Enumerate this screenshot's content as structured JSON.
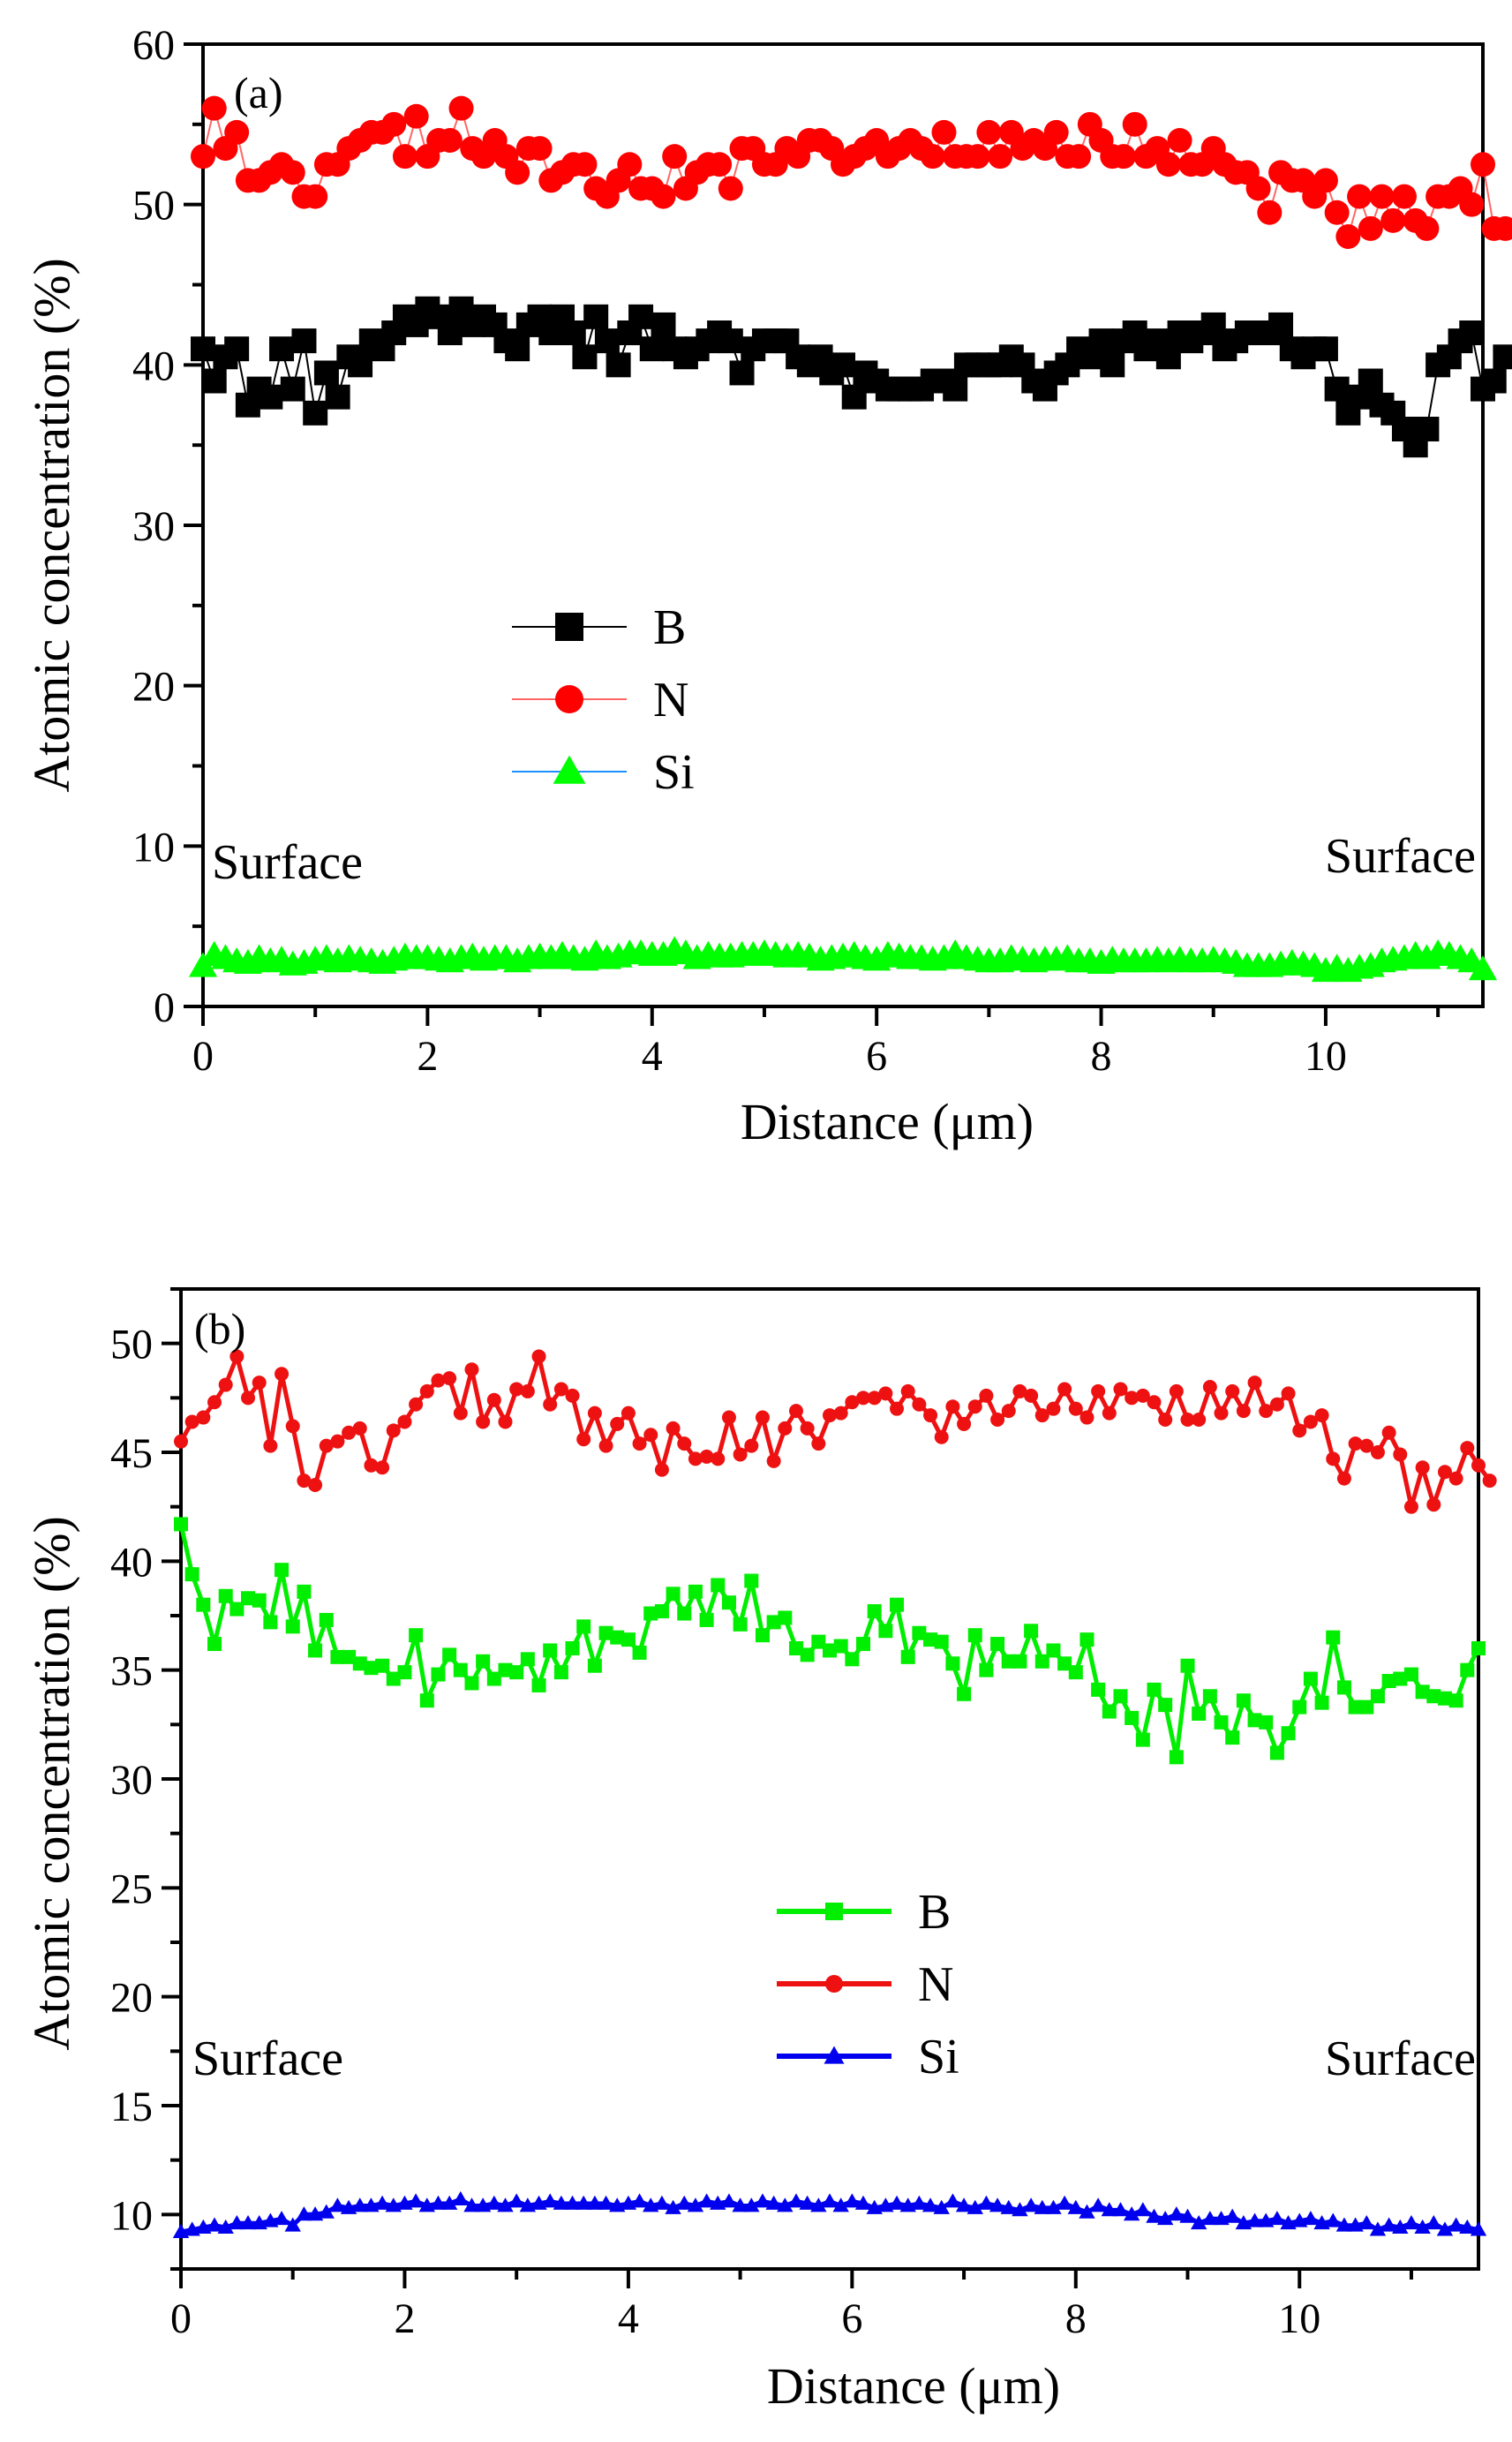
{
  "chart_data": [
    {
      "type": "line",
      "panel_label": "(a)",
      "xlabel": "Distance (μm)",
      "ylabel": "Atomic concentration (%)",
      "xlim": [
        0,
        11.4
      ],
      "ylim": [
        0,
        60
      ],
      "x_ticks": [
        0,
        2,
        4,
        6,
        8,
        10
      ],
      "x_tick_labels": [
        "0",
        "2",
        "4",
        "6",
        "8",
        "10"
      ],
      "y_ticks": [
        0,
        10,
        20,
        30,
        40,
        50,
        60
      ],
      "y_tick_labels": [
        "0",
        "10",
        "20",
        "30",
        "40",
        "50",
        "60"
      ],
      "legend_position": "center-left",
      "annotations": [
        {
          "text": "Surface",
          "position": "left"
        },
        {
          "text": "Surface",
          "position": "right"
        }
      ],
      "series": [
        {
          "name": "B",
          "marker": "square",
          "color": "#000000",
          "line_color": "#000000",
          "x_start": 0,
          "x_step": 0.1,
          "values": [
            41.0,
            39.0,
            40.5,
            41.0,
            37.5,
            38.5,
            38.0,
            41.0,
            38.5,
            41.5,
            37.0,
            39.5,
            38.0,
            40.5,
            40.0,
            41.5,
            41.0,
            42.0,
            43.0,
            42.5,
            43.5,
            43.0,
            42.0,
            43.5,
            42.5,
            43.0,
            42.5,
            41.5,
            41.0,
            42.5,
            43.0,
            42.0,
            43.0,
            42.0,
            40.5,
            43.0,
            41.5,
            40.0,
            42.0,
            43.0,
            41.0,
            42.5,
            41.0,
            40.5,
            41.0,
            41.5,
            42.0,
            41.5,
            39.5,
            41.0,
            41.5,
            41.5,
            41.5,
            40.5,
            40.0,
            40.5,
            39.5,
            40.0,
            38.0,
            39.5,
            39.0,
            38.5,
            38.5,
            38.5,
            38.5,
            39.0,
            39.0,
            38.5,
            40.0,
            40.0,
            40.0,
            40.0,
            40.5,
            40.0,
            39.0,
            38.5,
            39.5,
            40.0,
            41.0,
            40.5,
            41.5,
            40.0,
            41.5,
            42.0,
            41.0,
            41.5,
            40.5,
            42.0,
            41.5,
            42.0,
            42.5,
            41.0,
            41.5,
            42.0,
            42.0,
            42.0,
            42.5,
            41.0,
            40.5,
            41.0,
            41.0,
            38.5,
            37.0,
            38.0,
            39.0,
            37.5,
            37.0,
            36.0,
            35.0,
            36.0,
            40.0,
            40.5,
            41.5,
            42.0,
            38.5,
            39.0,
            40.5
          ]
        },
        {
          "name": "N",
          "marker": "circle",
          "color": "#ff0000",
          "line_color": "#ff6666",
          "x_start": 0,
          "x_step": 0.1,
          "values": [
            53.0,
            56.0,
            53.5,
            54.5,
            51.5,
            51.5,
            52.0,
            52.5,
            52.0,
            50.5,
            50.5,
            52.5,
            52.5,
            53.5,
            54.0,
            54.5,
            54.5,
            55.0,
            53.0,
            55.5,
            53.0,
            54.0,
            54.0,
            56.0,
            53.5,
            53.0,
            54.0,
            53.0,
            52.0,
            53.5,
            53.5,
            51.5,
            52.0,
            52.5,
            52.5,
            51.0,
            50.5,
            51.5,
            52.5,
            51.0,
            51.0,
            50.5,
            53.0,
            51.0,
            52.0,
            52.5,
            52.5,
            51.0,
            53.5,
            53.5,
            52.5,
            52.5,
            53.5,
            53.0,
            54.0,
            54.0,
            53.5,
            52.5,
            53.0,
            53.5,
            54.0,
            53.0,
            53.5,
            54.0,
            53.5,
            53.0,
            54.5,
            53.0,
            53.0,
            53.0,
            54.5,
            53.0,
            54.5,
            53.5,
            54.0,
            53.5,
            54.5,
            53.0,
            53.0,
            55.0,
            54.0,
            53.0,
            53.0,
            55.0,
            53.0,
            53.5,
            52.5,
            54.0,
            52.5,
            52.5,
            53.5,
            52.5,
            52.0,
            52.0,
            51.0,
            49.5,
            52.0,
            51.5,
            51.5,
            50.5,
            51.5,
            49.5,
            48.0,
            50.5,
            48.5,
            50.5,
            49.0,
            50.5,
            49.0,
            48.5,
            50.5,
            50.5,
            51.0,
            50.0,
            52.5,
            48.5,
            48.5
          ]
        },
        {
          "name": "Si",
          "marker": "triangle",
          "color": "#00ff00",
          "line_color": "#1e90ff",
          "x_start": 0,
          "x_step": 0.1,
          "values": [
            2.5,
            3.2,
            3.0,
            2.8,
            2.7,
            3.0,
            2.8,
            2.9,
            2.6,
            2.7,
            2.9,
            3.0,
            2.8,
            3.0,
            2.9,
            2.8,
            2.7,
            2.9,
            3.1,
            3.0,
            3.0,
            2.9,
            2.8,
            3.0,
            3.1,
            2.9,
            3.0,
            3.0,
            2.8,
            3.0,
            3.1,
            3.0,
            3.2,
            3.0,
            2.9,
            3.3,
            3.0,
            3.1,
            3.3,
            3.3,
            3.2,
            3.2,
            3.5,
            3.3,
            3.0,
            3.2,
            3.1,
            3.1,
            3.2,
            3.2,
            3.3,
            3.2,
            3.1,
            3.2,
            3.1,
            2.9,
            3.0,
            3.1,
            3.2,
            3.0,
            2.9,
            3.2,
            3.1,
            3.0,
            3.0,
            2.9,
            3.0,
            3.3,
            3.0,
            2.9,
            2.8,
            2.8,
            3.0,
            2.9,
            2.8,
            2.9,
            2.9,
            3.0,
            2.8,
            2.8,
            2.7,
            2.9,
            2.8,
            2.8,
            2.8,
            2.9,
            2.8,
            2.9,
            2.8,
            2.8,
            2.9,
            2.8,
            2.7,
            2.5,
            2.5,
            2.5,
            2.6,
            2.7,
            2.6,
            2.5,
            2.2,
            2.4,
            2.2,
            2.4,
            2.5,
            2.8,
            2.9,
            3.0,
            3.2,
            3.0,
            3.3,
            3.2,
            3.0,
            2.8,
            2.3
          ]
        }
      ]
    },
    {
      "type": "line",
      "panel_label": "(b)",
      "xlabel": "Distance (μm)",
      "ylabel": "Atomic concentration (%)",
      "xlim": [
        0,
        11.6
      ],
      "ylim": [
        7.5,
        52.5
      ],
      "x_ticks": [
        0,
        2,
        4,
        6,
        8,
        10
      ],
      "x_tick_labels": [
        "0",
        "2",
        "4",
        "6",
        "8",
        "10"
      ],
      "y_ticks": [
        10,
        15,
        20,
        25,
        30,
        35,
        40,
        45,
        50
      ],
      "y_tick_labels": [
        "10",
        "15",
        "20",
        "25",
        "30",
        "35",
        "40",
        "45",
        "50"
      ],
      "legend_position": "center",
      "annotations": [
        {
          "text": "Surface",
          "position": "left"
        },
        {
          "text": "Surface",
          "position": "right"
        }
      ],
      "series": [
        {
          "name": "B",
          "marker": "square",
          "color": "#00ee00",
          "line_color": "#00ee00",
          "x_start": 0,
          "x_step": 0.1,
          "values": [
            41.7,
            39.4,
            38.0,
            36.2,
            38.4,
            37.8,
            38.3,
            38.2,
            37.2,
            39.6,
            37.0,
            38.6,
            35.9,
            37.3,
            35.6,
            35.6,
            35.3,
            35.1,
            35.2,
            34.6,
            34.9,
            36.6,
            33.6,
            34.8,
            35.7,
            35.0,
            34.4,
            35.4,
            34.6,
            35.0,
            34.9,
            35.5,
            34.3,
            35.9,
            34.9,
            36.0,
            37.0,
            35.2,
            36.7,
            36.5,
            36.4,
            35.8,
            37.6,
            37.7,
            38.5,
            37.6,
            38.6,
            37.3,
            38.9,
            38.1,
            37.1,
            39.1,
            36.6,
            37.2,
            37.4,
            36.0,
            35.7,
            36.3,
            35.9,
            36.1,
            35.5,
            36.2,
            37.7,
            36.8,
            38.0,
            35.6,
            36.7,
            36.4,
            36.3,
            35.3,
            33.9,
            36.6,
            35.0,
            36.2,
            35.4,
            35.4,
            36.8,
            35.4,
            35.9,
            35.3,
            34.9,
            36.4,
            34.1,
            33.1,
            33.8,
            32.8,
            31.8,
            34.1,
            33.4,
            31.0,
            35.2,
            33.0,
            33.8,
            32.6,
            31.9,
            33.6,
            32.7,
            32.6,
            31.2,
            32.1,
            33.3,
            34.6,
            33.5,
            36.5,
            34.2,
            33.3,
            33.3,
            33.8,
            34.5,
            34.6,
            34.8,
            34.0,
            33.8,
            33.7,
            33.6,
            35.0,
            36.0
          ]
        },
        {
          "name": "N",
          "marker": "circle",
          "color": "#ee1111",
          "line_color": "#ee1111",
          "x_start": 0,
          "x_step": 0.1,
          "values": [
            45.5,
            46.4,
            46.6,
            47.3,
            48.1,
            49.4,
            47.5,
            48.2,
            45.3,
            48.6,
            46.2,
            43.7,
            43.5,
            45.3,
            45.5,
            45.9,
            46.1,
            44.4,
            44.3,
            46.0,
            46.4,
            47.2,
            47.8,
            48.3,
            48.4,
            46.8,
            48.8,
            46.4,
            47.4,
            46.4,
            47.9,
            47.8,
            49.4,
            47.2,
            47.9,
            47.6,
            45.6,
            46.8,
            45.3,
            46.3,
            46.8,
            45.4,
            45.8,
            44.2,
            46.1,
            45.4,
            44.7,
            44.8,
            44.7,
            46.6,
            44.9,
            45.3,
            46.6,
            44.6,
            46.1,
            46.9,
            46.1,
            45.4,
            46.7,
            46.8,
            47.3,
            47.5,
            47.5,
            47.7,
            47.0,
            47.8,
            47.2,
            46.7,
            45.7,
            47.1,
            46.3,
            47.1,
            47.6,
            46.5,
            46.9,
            47.8,
            47.6,
            46.7,
            47.0,
            47.9,
            47.0,
            46.6,
            47.8,
            46.8,
            47.9,
            47.5,
            47.6,
            47.3,
            46.5,
            47.8,
            46.5,
            46.5,
            48.0,
            46.8,
            47.8,
            46.9,
            48.2,
            46.9,
            47.2,
            47.7,
            46.0,
            46.4,
            46.7,
            44.7,
            43.8,
            45.4,
            45.3,
            45.0,
            45.9,
            44.9,
            42.5,
            44.3,
            42.6,
            44.1,
            43.8,
            45.2,
            44.4,
            43.7
          ]
        },
        {
          "name": "Si",
          "marker": "triangle",
          "color": "#0000ee",
          "line_color": "#0000ee",
          "x_start": 0,
          "x_step": 0.1,
          "values": [
            9.2,
            9.3,
            9.4,
            9.5,
            9.4,
            9.6,
            9.6,
            9.6,
            9.7,
            9.8,
            9.5,
            10.0,
            10.0,
            10.1,
            10.4,
            10.3,
            10.4,
            10.4,
            10.5,
            10.4,
            10.5,
            10.6,
            10.4,
            10.5,
            10.5,
            10.7,
            10.4,
            10.4,
            10.5,
            10.4,
            10.6,
            10.4,
            10.5,
            10.6,
            10.5,
            10.5,
            10.5,
            10.5,
            10.5,
            10.4,
            10.5,
            10.6,
            10.4,
            10.5,
            10.3,
            10.5,
            10.4,
            10.6,
            10.5,
            10.6,
            10.4,
            10.4,
            10.6,
            10.5,
            10.4,
            10.6,
            10.5,
            10.4,
            10.6,
            10.4,
            10.6,
            10.5,
            10.3,
            10.4,
            10.5,
            10.4,
            10.5,
            10.4,
            10.3,
            10.6,
            10.4,
            10.3,
            10.5,
            10.4,
            10.3,
            10.2,
            10.4,
            10.3,
            10.3,
            10.5,
            10.3,
            10.1,
            10.4,
            10.2,
            10.2,
            10.0,
            10.2,
            9.9,
            9.8,
            10.0,
            9.9,
            9.6,
            9.8,
            9.8,
            9.9,
            9.6,
            9.7,
            9.7,
            9.8,
            9.6,
            9.7,
            9.8,
            9.6,
            9.7,
            9.5,
            9.5,
            9.6,
            9.3,
            9.5,
            9.4,
            9.6,
            9.4,
            9.6,
            9.3,
            9.5,
            9.4,
            9.3
          ]
        }
      ]
    }
  ]
}
